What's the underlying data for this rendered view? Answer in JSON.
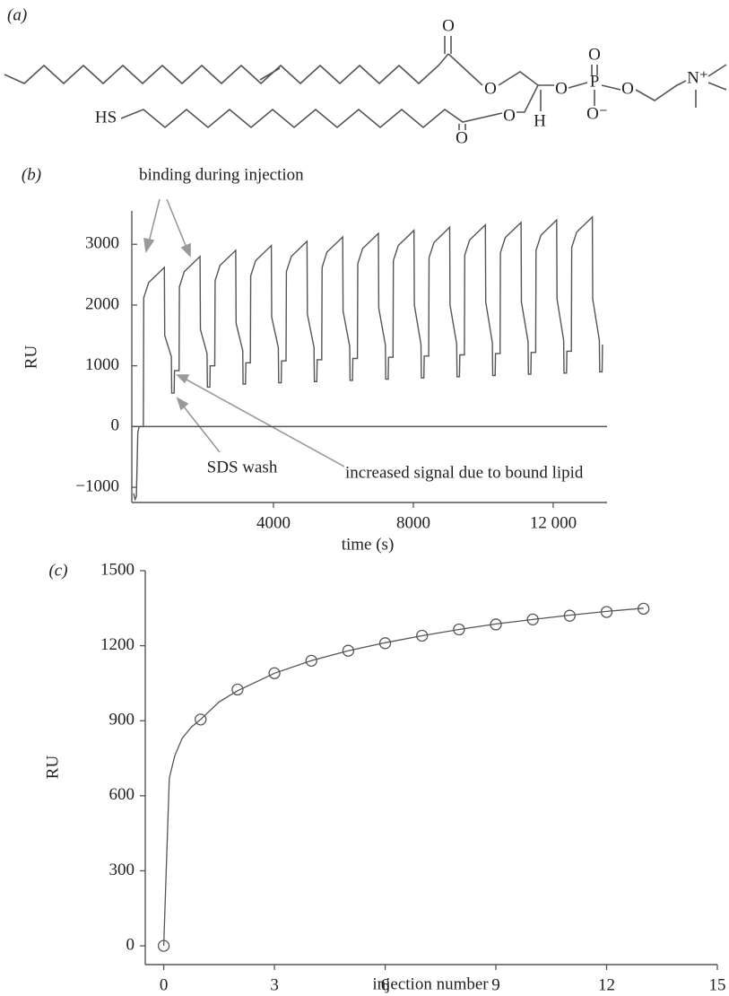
{
  "structure": {
    "label": "(a)",
    "atoms": [
      "O",
      "O",
      "O",
      "P",
      "O",
      "O",
      "O⁻",
      "N⁺",
      "HS",
      "O",
      "H",
      "O"
    ]
  },
  "chart_data": [
    {
      "type": "line",
      "label": "(b)",
      "ylabel": "RU",
      "xlabel": "time (s)",
      "color": "#555555",
      "annotations": [
        "binding during injection",
        "SDS wash",
        "increased signal due to bound lipid"
      ],
      "xlim": [
        0,
        13540
      ],
      "ylim": [
        -1250,
        3550
      ],
      "xticks": [
        4000,
        8000,
        {
          "value": 12000,
          "label": "12 000"
        }
      ],
      "yticks": [
        {
          "value": -1000,
          "label": "−1000"
        },
        0,
        1000,
        2000,
        3000
      ],
      "x": [
        0,
        40,
        80,
        120,
        160,
        200,
        280,
        290,
        430,
        880,
        890,
        1080,
        1090,
        1160,
        1170,
        1300,
        1310,
        1450,
        1900,
        1910,
        2100,
        2110,
        2180,
        2190,
        2320,
        2330,
        2470,
        2920,
        2930,
        3120,
        3130,
        3200,
        3210,
        3340,
        3350,
        3490,
        3940,
        3950,
        4140,
        4150,
        4220,
        4230,
        4360,
        4370,
        4510,
        4960,
        4970,
        5160,
        5170,
        5240,
        5250,
        5380,
        5390,
        5530,
        5980,
        5990,
        6180,
        6190,
        6260,
        6270,
        6400,
        6410,
        6550,
        7000,
        7010,
        7200,
        7210,
        7280,
        7290,
        7420,
        7430,
        7570,
        8020,
        8030,
        8220,
        8230,
        8300,
        8310,
        8440,
        8450,
        8590,
        9040,
        9050,
        9240,
        9250,
        9320,
        9330,
        9460,
        9470,
        9610,
        10060,
        10070,
        10260,
        10270,
        10340,
        10350,
        10480,
        10490,
        10630,
        11080,
        11090,
        11280,
        11290,
        11360,
        11370,
        11500,
        11510,
        11650,
        12100,
        12110,
        12300,
        12310,
        12380,
        12390,
        12520,
        12530,
        12670,
        13120,
        13130,
        13320,
        13330,
        13400,
        13410
      ],
      "values": [
        -1100,
        -1200,
        -1150,
        -100,
        0,
        0,
        0,
        2120,
        2370,
        2620,
        1500,
        1150,
        550,
        550,
        920,
        920,
        2300,
        2550,
        2800,
        1600,
        1200,
        650,
        650,
        1000,
        1000,
        2400,
        2650,
        2900,
        1700,
        1250,
        700,
        700,
        1050,
        1050,
        2480,
        2730,
        2980,
        1800,
        1300,
        720,
        720,
        1080,
        1080,
        2550,
        2800,
        3050,
        1850,
        1300,
        740,
        740,
        1100,
        1100,
        2620,
        2870,
        3120,
        1900,
        1320,
        760,
        760,
        1120,
        1120,
        2680,
        2930,
        3180,
        1950,
        1340,
        780,
        780,
        1140,
        1140,
        2730,
        2980,
        3230,
        2000,
        1350,
        800,
        800,
        1160,
        1160,
        2780,
        3030,
        3280,
        2000,
        1360,
        820,
        820,
        1180,
        1180,
        2820,
        3070,
        3320,
        2050,
        1380,
        840,
        840,
        1200,
        1200,
        2860,
        3110,
        3360,
        2050,
        1400,
        860,
        860,
        1220,
        1220,
        2900,
        3150,
        3400,
        2100,
        1420,
        880,
        880,
        1240,
        1240,
        2950,
        3200,
        3450,
        2100,
        1420,
        900,
        900,
        1350
      ]
    },
    {
      "type": "scatter",
      "label": "(c)",
      "ylabel": "RU",
      "xlabel": "injection number",
      "color": "#555555",
      "xlim": [
        -0.5,
        15
      ],
      "ylim": [
        -75,
        1500
      ],
      "xticks": [
        0,
        3,
        6,
        9,
        12,
        15
      ],
      "yticks": [
        0,
        300,
        600,
        900,
        1200,
        1500
      ],
      "x": [
        0,
        1,
        2,
        3,
        4,
        5,
        6,
        7,
        8,
        9,
        10,
        11,
        12,
        13
      ],
      "values": [
        0,
        905,
        1025,
        1090,
        1140,
        1180,
        1210,
        1240,
        1265,
        1285,
        1305,
        1320,
        1335,
        1348
      ],
      "fit": {
        "x": [
          0,
          0.15,
          0.3,
          0.5,
          0.75,
          1,
          1.5,
          2,
          3,
          4,
          5,
          6,
          7,
          8,
          9,
          10,
          11,
          12,
          13
        ],
        "values": [
          0,
          670,
          760,
          830,
          875,
          905,
          975,
          1020,
          1090,
          1140,
          1180,
          1212,
          1240,
          1265,
          1287,
          1305,
          1322,
          1337,
          1350
        ]
      }
    }
  ]
}
